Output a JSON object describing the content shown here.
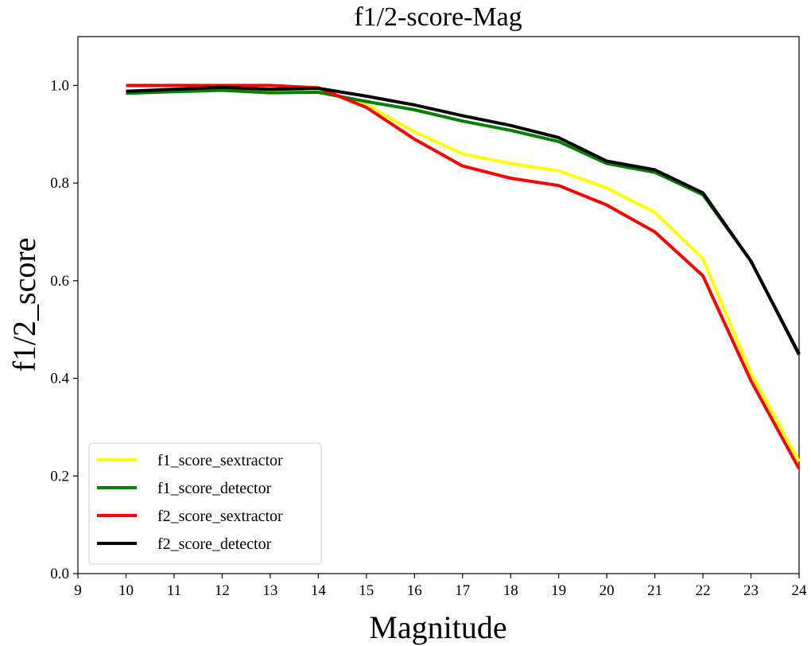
{
  "chart_data": {
    "type": "line",
    "title": "f1/2-score-Mag",
    "xlabel": "Magnitude",
    "ylabel": "f1/2_score",
    "xlim": [
      9,
      24
    ],
    "ylim": [
      0.0,
      1.1
    ],
    "xticks": [
      "9",
      "10",
      "11",
      "12",
      "13",
      "14",
      "15",
      "16",
      "17",
      "18",
      "19",
      "20",
      "21",
      "22",
      "23",
      "24"
    ],
    "yticks": [
      "0.0",
      "0.2",
      "0.4",
      "0.6",
      "0.8",
      "1.0"
    ],
    "grid": false,
    "legend_position": "lower-left",
    "x": [
      10,
      11,
      12,
      13,
      14,
      15,
      16,
      17,
      18,
      19,
      20,
      21,
      22,
      23,
      24
    ],
    "series": [
      {
        "name": "f1_score_sextractor",
        "color": "#ffff00",
        "values": [
          0.985,
          0.99,
          0.995,
          0.99,
          0.99,
          0.96,
          0.905,
          0.86,
          0.84,
          0.825,
          0.79,
          0.74,
          0.645,
          0.41,
          0.23
        ]
      },
      {
        "name": "f1_score_detector",
        "color": "#008000",
        "values": [
          0.984,
          0.987,
          0.99,
          0.985,
          0.986,
          0.967,
          0.95,
          0.927,
          0.908,
          0.885,
          0.84,
          0.822,
          0.776,
          0.64,
          0.448
        ]
      },
      {
        "name": "f2_score_sextractor",
        "color": "#ff0000",
        "values": [
          1.0,
          1.0,
          1.0,
          1.0,
          0.995,
          0.955,
          0.89,
          0.835,
          0.81,
          0.795,
          0.755,
          0.7,
          0.61,
          0.395,
          0.215
        ]
      },
      {
        "name": "f2_score_detector",
        "color": "#000000",
        "values": [
          0.988,
          0.992,
          0.996,
          0.992,
          0.994,
          0.978,
          0.96,
          0.938,
          0.918,
          0.893,
          0.845,
          0.827,
          0.78,
          0.64,
          0.45
        ]
      }
    ]
  }
}
